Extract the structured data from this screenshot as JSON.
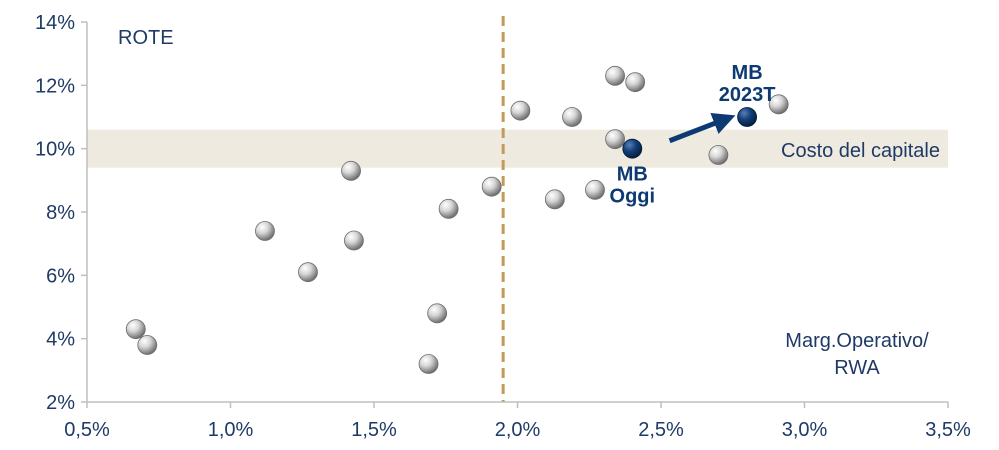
{
  "chart_data": {
    "type": "scatter",
    "title": "",
    "ylabel": "ROTE",
    "xlabel_lines": [
      "Marg.Operativo/",
      "RWA"
    ],
    "xlim": [
      0.5,
      3.5
    ],
    "ylim": [
      2,
      14
    ],
    "x_ticks": [
      0.5,
      1.0,
      1.5,
      2.0,
      2.5,
      3.0,
      3.5
    ],
    "x_tick_labels": [
      "0,5%",
      "1,0%",
      "1,5%",
      "2,0%",
      "2,5%",
      "3,0%",
      "3,5%"
    ],
    "y_ticks": [
      2,
      4,
      6,
      8,
      10,
      12,
      14
    ],
    "y_tick_labels": [
      "2%",
      "4%",
      "6%",
      "8%",
      "10%",
      "12%",
      "14%"
    ],
    "grid": false,
    "reference_line": {
      "x": 1.95
    },
    "band": {
      "y_min": 9.4,
      "y_max": 10.6,
      "label": "Costo del capitale"
    },
    "peers": [
      {
        "x": 0.67,
        "y": 4.3
      },
      {
        "x": 0.71,
        "y": 3.8
      },
      {
        "x": 1.12,
        "y": 7.4
      },
      {
        "x": 1.27,
        "y": 6.1
      },
      {
        "x": 1.42,
        "y": 9.3
      },
      {
        "x": 1.43,
        "y": 7.1
      },
      {
        "x": 1.69,
        "y": 3.2
      },
      {
        "x": 1.72,
        "y": 4.8
      },
      {
        "x": 1.76,
        "y": 8.1
      },
      {
        "x": 1.91,
        "y": 8.8
      },
      {
        "x": 2.01,
        "y": 11.2
      },
      {
        "x": 2.13,
        "y": 8.4
      },
      {
        "x": 2.19,
        "y": 11.0
      },
      {
        "x": 2.27,
        "y": 8.7
      },
      {
        "x": 2.34,
        "y": 12.3
      },
      {
        "x": 2.34,
        "y": 10.3
      },
      {
        "x": 2.41,
        "y": 12.1
      },
      {
        "x": 2.7,
        "y": 9.8
      },
      {
        "x": 2.91,
        "y": 11.4
      }
    ],
    "highlights": [
      {
        "id": "today",
        "x": 2.4,
        "y": 10.0,
        "label_lines": [
          "MB",
          "Oggi"
        ]
      },
      {
        "id": "target",
        "x": 2.8,
        "y": 11.0,
        "label_lines": [
          "MB",
          "2023T"
        ]
      }
    ],
    "arrow": {
      "from": [
        2.53,
        10.25
      ],
      "to": [
        2.73,
        10.95
      ]
    },
    "colors": {
      "axis": "#bfbfbf",
      "text": "#1f3a66",
      "highlight": "#0d3a73",
      "band": "#eeeadf",
      "reference_line": "#c49a5c",
      "peer_light": "#ffffff",
      "peer_dark": "#7f7f7f"
    }
  }
}
